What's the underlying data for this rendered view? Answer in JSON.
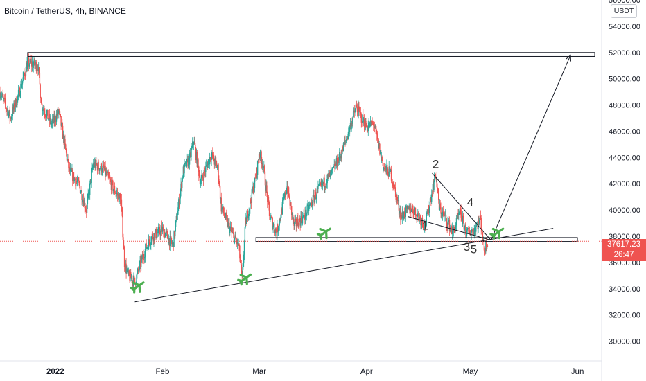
{
  "header": {
    "symbol": "Bitcoin / TetherUS",
    "interval": "4h",
    "exchange": "BINANCE",
    "separator": ", "
  },
  "unit_button": "USDT",
  "last_price": {
    "value": "37617.23",
    "countdown": "26:47",
    "color": "#ef5350"
  },
  "colors": {
    "up": "#26a69a",
    "down": "#ef5350",
    "line": "#131722",
    "marker": "#4caf50"
  },
  "chart_data": {
    "type": "candlestick",
    "title": "",
    "xlabel": "",
    "ylabel": "",
    "ylim": [
      28500,
      56000
    ],
    "xlim": [
      "2021-12-16",
      "2022-06-08"
    ],
    "y_ticks": [
      "30000.00",
      "32000.00",
      "34000.00",
      "36000.00",
      "38000.00",
      "40000.00",
      "42000.00",
      "44000.00",
      "46000.00",
      "48000.00",
      "50000.00",
      "52000.00",
      "54000.00",
      "56000.00"
    ],
    "x_ticks": [
      {
        "label": "2022",
        "date": "2022-01-01"
      },
      {
        "label": "Feb",
        "date": "2022-02-01"
      },
      {
        "label": "Mar",
        "date": "2022-03-01"
      },
      {
        "label": "Apr",
        "date": "2022-04-01"
      },
      {
        "label": "May",
        "date": "2022-05-01"
      },
      {
        "label": "Jun",
        "date": "2022-06-01"
      }
    ],
    "price_path": [
      [
        "2021-12-16",
        49000
      ],
      [
        "2021-12-19",
        47000
      ],
      [
        "2021-12-21",
        48500
      ],
      [
        "2021-12-24",
        51200
      ],
      [
        "2021-12-27",
        51000
      ],
      [
        "2021-12-28",
        48000
      ],
      [
        "2021-12-31",
        46500
      ],
      [
        "2022-01-02",
        47500
      ],
      [
        "2022-01-05",
        43000
      ],
      [
        "2022-01-08",
        41800
      ],
      [
        "2022-01-10",
        40000
      ],
      [
        "2022-01-12",
        43500
      ],
      [
        "2022-01-15",
        43100
      ],
      [
        "2022-01-17",
        42000
      ],
      [
        "2022-01-20",
        40700
      ],
      [
        "2022-01-21",
        36000
      ],
      [
        "2022-01-22",
        35000
      ],
      [
        "2022-01-24",
        34500
      ],
      [
        "2022-01-27",
        37000
      ],
      [
        "2022-01-29",
        38000
      ],
      [
        "2022-02-01",
        38500
      ],
      [
        "2022-02-04",
        37300
      ],
      [
        "2022-02-07",
        43000
      ],
      [
        "2022-02-09",
        44000
      ],
      [
        "2022-02-10",
        45300
      ],
      [
        "2022-02-12",
        42100
      ],
      [
        "2022-02-15",
        44200
      ],
      [
        "2022-02-17",
        43200
      ],
      [
        "2022-02-18",
        40200
      ],
      [
        "2022-02-21",
        38200
      ],
      [
        "2022-02-23",
        37300
      ],
      [
        "2022-02-24",
        34600
      ],
      [
        "2022-02-25",
        39000
      ],
      [
        "2022-02-28",
        42500
      ],
      [
        "2022-03-01",
        44400
      ],
      [
        "2022-03-02",
        43600
      ],
      [
        "2022-03-04",
        39500
      ],
      [
        "2022-03-06",
        38300
      ],
      [
        "2022-03-09",
        41800
      ],
      [
        "2022-03-11",
        38800
      ],
      [
        "2022-03-14",
        39500
      ],
      [
        "2022-03-16",
        40500
      ],
      [
        "2022-03-18",
        41500
      ],
      [
        "2022-03-22",
        42800
      ],
      [
        "2022-03-25",
        44500
      ],
      [
        "2022-03-28",
        47000
      ],
      [
        "2022-03-29",
        47800
      ],
      [
        "2022-04-01",
        46300
      ],
      [
        "2022-04-03",
        46600
      ],
      [
        "2022-04-06",
        43200
      ],
      [
        "2022-04-08",
        42800
      ],
      [
        "2022-04-11",
        39500
      ],
      [
        "2022-04-14",
        40200
      ],
      [
        "2022-04-18",
        38800
      ],
      [
        "2022-04-20",
        41500
      ],
      [
        "2022-04-21",
        42800
      ],
      [
        "2022-04-22",
        40200
      ],
      [
        "2022-04-26",
        38300
      ],
      [
        "2022-04-28",
        39800
      ],
      [
        "2022-04-30",
        38200
      ],
      [
        "2022-05-02",
        38500
      ],
      [
        "2022-05-04",
        39300
      ],
      [
        "2022-05-05",
        37000
      ],
      [
        "2022-05-06",
        37600
      ]
    ],
    "support_zone": {
      "from": "2022-02-28",
      "to": "2022-06-01",
      "low": 37600,
      "high": 37900
    },
    "resistance_zone": {
      "from": "2021-12-24",
      "to": "2022-06-06",
      "low": 51700,
      "high": 52000
    },
    "trendline_lower": {
      "from": [
        "2022-01-24",
        33000
      ],
      "to": [
        "2022-05-25",
        38600
      ]
    },
    "wedge_upper": {
      "from": [
        "2022-04-20",
        42800
      ],
      "to": [
        "2022-05-07",
        37700
      ]
    },
    "wedge_lower": {
      "from": [
        "2022-04-13",
        39500
      ],
      "to": [
        "2022-05-07",
        37700
      ]
    },
    "projection_arrow": {
      "from": [
        "2022-05-07",
        37700
      ],
      "to": [
        "2022-05-30",
        51800
      ]
    },
    "wave_labels": [
      {
        "label": "1",
        "date": "2022-04-18",
        "price": 38500
      },
      {
        "label": "2",
        "date": "2022-04-21",
        "price": 43200
      },
      {
        "label": "3",
        "date": "2022-04-30",
        "price": 36900
      },
      {
        "label": "4",
        "date": "2022-05-01",
        "price": 40300
      },
      {
        "label": "5",
        "date": "2022-05-02",
        "price": 36700
      }
    ],
    "markers": [
      {
        "date": "2022-01-25",
        "price": 34200
      },
      {
        "date": "2022-02-25",
        "price": 34800
      },
      {
        "date": "2022-03-20",
        "price": 38300
      },
      {
        "date": "2022-05-09",
        "price": 38300
      }
    ]
  }
}
